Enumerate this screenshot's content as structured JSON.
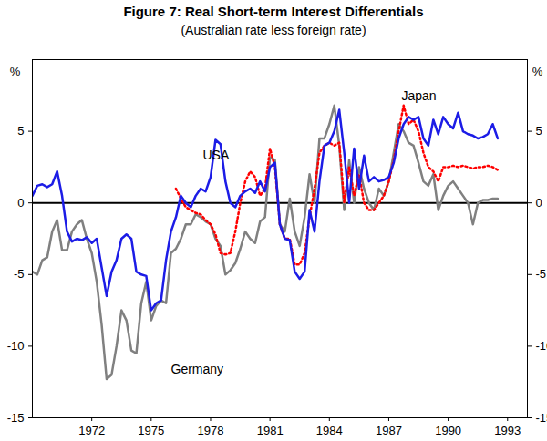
{
  "chart_data": {
    "type": "line",
    "title": "Figure 7: Real Short-term Interest Differentials",
    "subtitle": "(Australian rate less foreign rate)",
    "y_label": "%",
    "xlim": [
      1969,
      1994
    ],
    "xticks": [
      1972,
      1975,
      1978,
      1981,
      1984,
      1987,
      1990,
      1993
    ],
    "ylim": [
      -15,
      10
    ],
    "yticks": [
      -15,
      -10,
      -5,
      0,
      5
    ],
    "baseline": 0,
    "grid": false,
    "x": [
      1969,
      1969.25,
      1969.5,
      1969.75,
      1970,
      1970.25,
      1970.5,
      1970.75,
      1971,
      1971.25,
      1971.5,
      1971.75,
      1972,
      1972.25,
      1972.5,
      1972.75,
      1973,
      1973.25,
      1973.5,
      1973.75,
      1974,
      1974.25,
      1974.5,
      1974.75,
      1975,
      1975.25,
      1975.5,
      1975.75,
      1976,
      1976.25,
      1976.5,
      1976.75,
      1977,
      1977.25,
      1977.5,
      1977.75,
      1978,
      1978.25,
      1978.5,
      1978.75,
      1979,
      1979.25,
      1979.5,
      1979.75,
      1980,
      1980.25,
      1980.5,
      1980.75,
      1981,
      1981.25,
      1981.5,
      1981.75,
      1982,
      1982.25,
      1982.5,
      1982.75,
      1983,
      1983.25,
      1983.5,
      1983.75,
      1984,
      1984.25,
      1984.5,
      1984.75,
      1985,
      1985.25,
      1985.5,
      1985.75,
      1986,
      1986.25,
      1986.5,
      1986.75,
      1987,
      1987.25,
      1987.5,
      1987.75,
      1988,
      1988.25,
      1988.5,
      1988.75,
      1989,
      1989.25,
      1989.5,
      1989.75,
      1990,
      1990.25,
      1990.5,
      1990.75,
      1991,
      1991.25,
      1991.5,
      1991.75,
      1992,
      1992.25,
      1992.5
    ],
    "series": [
      {
        "name": "USA",
        "color": "#1c1ce6",
        "line_style": "solid",
        "values": [
          0.5,
          1.2,
          1.3,
          1.1,
          1.3,
          2.2,
          0.5,
          -2.0,
          -2.7,
          -2.5,
          -2.6,
          -2.4,
          -2.8,
          -2.5,
          -4.5,
          -6.5,
          -4.8,
          -4.0,
          -2.5,
          -2.2,
          -2.5,
          -4.8,
          -5.0,
          -5.1,
          -7.5,
          -7.0,
          -6.8,
          -4.0,
          -2.0,
          -1.0,
          0.5,
          0.0,
          -0.3,
          0.5,
          1.0,
          0.8,
          1.8,
          4.4,
          4.1,
          1.5,
          0.0,
          -0.3,
          0.5,
          0.8,
          1.0,
          0.7,
          1.5,
          0.8,
          2.5,
          2.8,
          -1.5,
          -2.5,
          -2.6,
          -4.8,
          -5.3,
          -4.8,
          -0.5,
          -2.0,
          1.5,
          4.0,
          4.2,
          5.0,
          6.5,
          3.5,
          0.0,
          3.8,
          1.0,
          3.3,
          1.5,
          1.8,
          1.5,
          1.6,
          1.8,
          2.8,
          4.5,
          5.5,
          6.0,
          5.8,
          6.0,
          4.5,
          4.0,
          5.8,
          4.8,
          6.0,
          5.5,
          5.2,
          6.3,
          5.0,
          4.8,
          4.7,
          4.5,
          4.6,
          4.8,
          5.5,
          4.5
        ]
      },
      {
        "name": "Japan",
        "color": "#ff0000",
        "line_style": "dotted",
        "values": [
          null,
          null,
          null,
          null,
          null,
          null,
          null,
          null,
          null,
          null,
          null,
          null,
          null,
          null,
          null,
          null,
          null,
          null,
          null,
          null,
          null,
          null,
          null,
          null,
          null,
          null,
          null,
          null,
          null,
          1.0,
          0.3,
          -0.3,
          -0.5,
          -0.7,
          -0.8,
          -1.2,
          -1.5,
          -2.2,
          -3.5,
          -3.6,
          -3.5,
          -2.0,
          0.0,
          1.5,
          2.2,
          1.8,
          0.5,
          1.0,
          3.8,
          2.5,
          -1.5,
          -2.5,
          -2.5,
          -4.3,
          -4.3,
          -3.5,
          -1.0,
          1.0,
          3.5,
          4.0,
          4.2,
          4.0,
          4.2,
          0.0,
          2.5,
          0.5,
          2.0,
          0.0,
          -0.5,
          -0.5,
          0.0,
          0.5,
          1.5,
          3.0,
          5.0,
          6.8,
          5.5,
          5.8,
          5.0,
          3.5,
          2.5,
          2.2,
          1.5,
          2.5,
          2.5,
          2.6,
          2.5,
          2.6,
          2.5,
          2.4,
          2.5,
          2.5,
          2.6,
          2.5,
          2.3
        ]
      },
      {
        "name": "Germany",
        "color": "#808080",
        "line_style": "solid",
        "values": [
          -4.8,
          -5.0,
          -4.0,
          -3.8,
          -2.0,
          -1.2,
          -3.3,
          -3.3,
          -2.0,
          -1.5,
          -1.2,
          -2.5,
          -3.5,
          -5.5,
          -8.5,
          -12.3,
          -12.0,
          -10.0,
          -7.5,
          -8.2,
          -10.3,
          -10.5,
          -7.0,
          -5.5,
          -8.2,
          -7.2,
          -6.8,
          -7.0,
          -3.5,
          -3.2,
          -2.5,
          -1.5,
          -1.5,
          -0.8,
          -1.0,
          -1.3,
          -1.5,
          -2.5,
          -3.0,
          -5.0,
          -4.7,
          -4.2,
          -3.2,
          -2.0,
          -2.5,
          -2.8,
          -1.3,
          -1.0,
          3.2,
          3.0,
          -1.5,
          -2.0,
          0.3,
          -2.0,
          -3.0,
          -1.0,
          2.0,
          0.0,
          4.5,
          4.5,
          5.5,
          6.8,
          4.0,
          -0.5,
          3.0,
          0.0,
          2.5,
          1.0,
          0.0,
          -0.5,
          1.0,
          0.5,
          1.5,
          3.5,
          5.5,
          5.0,
          4.2,
          4.0,
          2.8,
          1.5,
          1.2,
          2.0,
          -0.5,
          0.5,
          1.2,
          1.5,
          1.0,
          0.5,
          0.0,
          -1.5,
          0.0,
          0.2,
          0.2,
          0.3,
          0.3
        ]
      }
    ]
  }
}
